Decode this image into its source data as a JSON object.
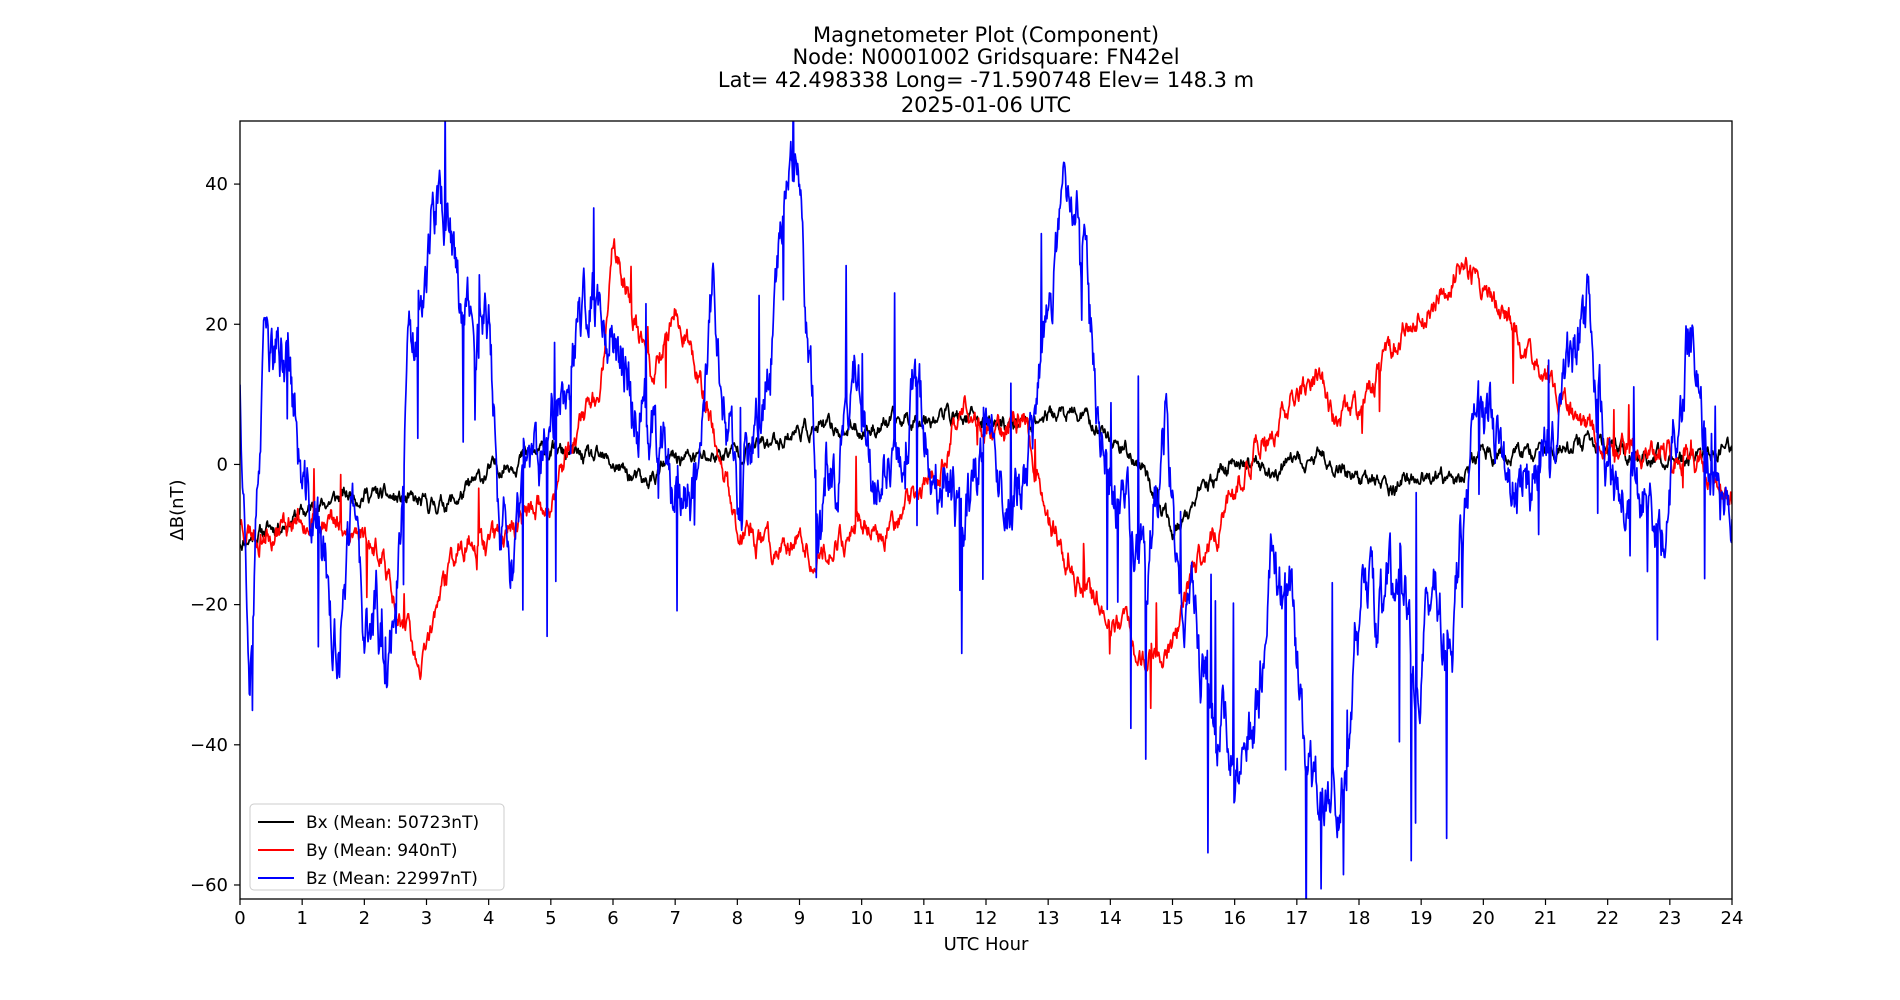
{
  "chart_data": {
    "type": "line",
    "title_lines": [
      "Magnetometer Plot (Component)",
      "Node:  N0001002     Gridsquare:  FN42el",
      "Lat= 42.498338    Long= -71.590748    Elev= 148.3 m",
      "2025-01-06  UTC"
    ],
    "xlabel": "UTC Hour",
    "ylabel": "ΔB(nT)",
    "xlim": [
      0,
      24
    ],
    "ylim": [
      -62,
      49
    ],
    "xticks": [
      0,
      1,
      2,
      3,
      4,
      5,
      6,
      7,
      8,
      9,
      10,
      11,
      12,
      13,
      14,
      15,
      16,
      17,
      18,
      19,
      20,
      21,
      22,
      23,
      24
    ],
    "yticks": [
      -60,
      -40,
      -20,
      0,
      20,
      40
    ],
    "ytick_labels": [
      "−60",
      "−40",
      "−20",
      "0",
      "20",
      "40"
    ],
    "grid": false,
    "legend_position": "lower-left",
    "series": [
      {
        "name": "Bx (Mean: 50723nT)",
        "color": "#000000",
        "x": [
          0,
          0.5,
          1,
          1.5,
          2,
          2.5,
          3,
          3.5,
          4,
          4.5,
          5,
          5.5,
          6,
          6.5,
          7,
          7.5,
          8,
          8.5,
          9,
          9.5,
          10,
          10.5,
          11,
          11.5,
          12,
          12.5,
          13,
          13.5,
          14,
          14.5,
          15,
          15.5,
          16,
          16.5,
          17,
          17.5,
          18,
          18.5,
          19,
          19.5,
          20,
          20.5,
          21,
          21.5,
          22,
          22.5,
          23,
          23.5,
          24
        ],
        "y": [
          -11,
          -9,
          -7,
          -5,
          -4,
          -5,
          -6,
          -5,
          -1,
          1,
          2,
          1,
          0,
          -3,
          1,
          1,
          2,
          3,
          5,
          5,
          5,
          6,
          7,
          7,
          6,
          6,
          7,
          7,
          4,
          0,
          -10,
          -4,
          1,
          -1,
          0,
          1,
          -2,
          -3,
          -2,
          -3,
          2,
          1,
          2,
          3,
          2,
          1,
          1,
          1,
          2
        ],
        "noise": 1.6,
        "seed": 11
      },
      {
        "name": "By (Mean: 940nT)",
        "color": "#ff0000",
        "x": [
          0,
          0.3,
          0.6,
          1,
          1.3,
          1.6,
          2,
          2.3,
          2.5,
          2.7,
          2.9,
          3.1,
          3.4,
          3.7,
          4,
          4.4,
          4.8,
          5.1,
          5.4,
          5.8,
          6,
          6.3,
          6.6,
          7,
          7.3,
          7.6,
          8,
          8.4,
          8.8,
          9.2,
          9.6,
          10,
          10.4,
          10.8,
          11.2,
          11.6,
          12,
          12.3,
          12.6,
          13,
          13.4,
          13.8,
          14.1,
          14.4,
          14.7,
          15,
          15.3,
          15.6,
          16,
          16.3,
          16.6,
          17,
          17.3,
          17.6,
          18,
          18.4,
          18.8,
          19,
          19.3,
          19.6,
          20,
          20.4,
          20.8,
          21.2,
          21.6,
          22,
          22.4,
          22.8,
          23.2,
          23.6,
          24
        ],
        "y": [
          -8,
          -10,
          -9,
          -7,
          -8,
          -9,
          -10,
          -14,
          -19,
          -24,
          -31,
          -22,
          -14,
          -10,
          -11,
          -9,
          -6,
          -4,
          5,
          10,
          32,
          22,
          12,
          22,
          15,
          5,
          -9,
          -12,
          -11,
          -12,
          -11,
          -8,
          -9,
          -5,
          -2,
          8,
          5,
          4,
          8,
          -8,
          -15,
          -20,
          -22,
          -26,
          -28,
          -27,
          -15,
          -12,
          -5,
          2,
          5,
          10,
          12,
          6,
          8,
          15,
          20,
          22,
          24,
          28,
          26,
          20,
          15,
          10,
          5,
          3,
          2,
          1,
          1,
          -1,
          -5
        ],
        "noise": 2.4,
        "seed": 23
      },
      {
        "name": "Bz (Mean: 22997nT)",
        "color": "#0000ff",
        "x": [
          0,
          0.15,
          0.4,
          0.8,
          1,
          1.3,
          1.6,
          1.8,
          2,
          2.2,
          2.4,
          2.7,
          3,
          3.2,
          3.3,
          3.5,
          3.8,
          4,
          4.2,
          4.4,
          4.6,
          4.9,
          5.2,
          5.5,
          5.8,
          6,
          6.3,
          6.6,
          7,
          7.3,
          7.6,
          8,
          8.4,
          8.7,
          9,
          9.3,
          9.6,
          9.9,
          10.2,
          10.5,
          10.8,
          11.2,
          11.6,
          12,
          12.4,
          12.8,
          13.2,
          13.5,
          13.8,
          14,
          14.3,
          14.6,
          14.9,
          15.1,
          15.4,
          15.7,
          16,
          16.3,
          16.6,
          16.9,
          17.2,
          17.5,
          17.7,
          18,
          18.3,
          18.6,
          18.9,
          19.2,
          19.5,
          19.8,
          20.1,
          20.5,
          20.9,
          21.3,
          21.7,
          22.1,
          22.5,
          22.9,
          23.3,
          23.7,
          24
        ],
        "y": [
          13,
          -25,
          15,
          15,
          -5,
          -10,
          -30,
          -5,
          -28,
          -20,
          -30,
          12,
          30,
          38,
          35,
          25,
          20,
          20,
          -10,
          -15,
          -5,
          0,
          12,
          20,
          25,
          20,
          10,
          5,
          0,
          -5,
          25,
          -5,
          5,
          35,
          40,
          -5,
          0,
          15,
          -5,
          0,
          10,
          0,
          -10,
          5,
          -5,
          5,
          35,
          40,
          5,
          0,
          -10,
          -15,
          10,
          -20,
          -25,
          -35,
          -45,
          -40,
          -15,
          -20,
          -45,
          -50,
          -55,
          -15,
          -25,
          -15,
          -30,
          -20,
          -25,
          5,
          5,
          -5,
          0,
          10,
          20,
          -5,
          -5,
          -10,
          20,
          -5,
          -10
        ],
        "noise": 6.5,
        "seed": 37
      }
    ]
  }
}
